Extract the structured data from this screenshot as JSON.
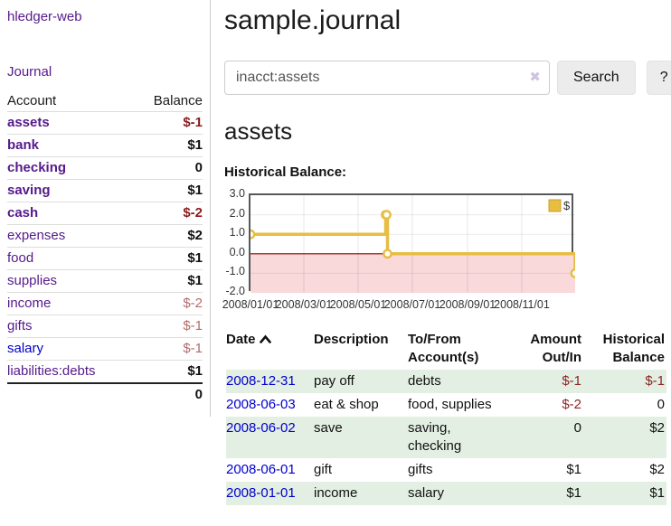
{
  "app": {
    "brand": "hledger-web",
    "nav_journal": "Journal"
  },
  "sidebar": {
    "accounts_header": {
      "account": "Account",
      "balance": "Balance"
    },
    "accounts": [
      {
        "name": "assets",
        "balance": "$-1",
        "depth": 0,
        "bold": true,
        "balance_style": "neg-strong"
      },
      {
        "name": "bank",
        "balance": "$1",
        "depth": 1,
        "bold": true,
        "balance_style": "pos"
      },
      {
        "name": "checking",
        "balance": "0",
        "depth": 2,
        "bold": true,
        "balance_style": "pos"
      },
      {
        "name": "saving",
        "balance": "$1",
        "depth": 2,
        "bold": true,
        "balance_style": "pos"
      },
      {
        "name": "cash",
        "balance": "$-2",
        "depth": 1,
        "bold": true,
        "balance_style": "neg-strong"
      },
      {
        "name": "expenses",
        "balance": "$2",
        "depth": 0,
        "bold": false,
        "balance_style": "pos"
      },
      {
        "name": "food",
        "balance": "$1",
        "depth": 1,
        "bold": false,
        "balance_style": "pos"
      },
      {
        "name": "supplies",
        "balance": "$1",
        "depth": 1,
        "bold": false,
        "balance_style": "pos"
      },
      {
        "name": "income",
        "balance": "$-2",
        "depth": 0,
        "bold": false,
        "balance_style": "neg-muted"
      },
      {
        "name": "gifts",
        "balance": "$-1",
        "depth": 1,
        "bold": false,
        "balance_style": "neg-muted"
      },
      {
        "name": "salary",
        "balance": "$-1",
        "depth": 1,
        "bold": false,
        "balance_style": "neg-muted",
        "link_color": "blue"
      },
      {
        "name": "liabilities:debts",
        "balance": "$1",
        "depth": 0,
        "bold": false,
        "balance_style": "pos"
      }
    ],
    "total": "0"
  },
  "header": {
    "title": "sample.journal"
  },
  "search": {
    "value": "inacct:assets",
    "clear_icon": "✖",
    "button_label": "Search",
    "help_label": "?"
  },
  "account_page": {
    "title": "assets",
    "chart_label": "Historical Balance:"
  },
  "chart_data": {
    "type": "line",
    "style": "step",
    "title": "Historical Balance",
    "series": [
      {
        "name": "$",
        "color": "#e7bd42",
        "points": [
          [
            "2008-01-01",
            1
          ],
          [
            "2008-06-01",
            2
          ],
          [
            "2008-06-02",
            2
          ],
          [
            "2008-06-03",
            0
          ],
          [
            "2008-12-31",
            -1
          ]
        ]
      }
    ],
    "ylim": [
      -2.0,
      3.0
    ],
    "yticks": [
      3.0,
      2.0,
      1.0,
      0.0,
      -1.0,
      -2.0
    ],
    "xticks": [
      "2008/01/01",
      "2008/03/01",
      "2008/05/01",
      "2008/07/01",
      "2008/09/01",
      "2008/11/01"
    ],
    "x_range": [
      "2008-01-01",
      "2008-12-31"
    ],
    "legend": "$",
    "legend_position": "top-right",
    "grid": true,
    "negative_region_shaded": true
  },
  "register": {
    "columns": [
      {
        "line1": "Date",
        "line2": "",
        "align": "left",
        "sorted": "asc"
      },
      {
        "line1": "Description",
        "line2": "",
        "align": "left"
      },
      {
        "line1": "To/From",
        "line2": "Account(s)",
        "align": "left"
      },
      {
        "line1": "Amount",
        "line2": "Out/In",
        "align": "right"
      },
      {
        "line1": "Historical",
        "line2": "Balance",
        "align": "right"
      }
    ],
    "rows": [
      {
        "date": "2008-12-31",
        "description": "pay off",
        "accounts": "debts",
        "amount": "$-1",
        "amount_neg": true,
        "balance": "$-1",
        "balance_neg": true
      },
      {
        "date": "2008-06-03",
        "description": "eat & shop",
        "accounts": "food, supplies",
        "amount": "$-2",
        "amount_neg": true,
        "balance": "0",
        "balance_neg": false
      },
      {
        "date": "2008-06-02",
        "description": "save",
        "accounts": "saving, checking",
        "amount": "0",
        "amount_neg": false,
        "balance": "$2",
        "balance_neg": false
      },
      {
        "date": "2008-06-01",
        "description": "gift",
        "accounts": "gifts",
        "amount": "$1",
        "amount_neg": false,
        "balance": "$2",
        "balance_neg": false
      },
      {
        "date": "2008-01-01",
        "description": "income",
        "accounts": "salary",
        "amount": "$1",
        "amount_neg": false,
        "balance": "$1",
        "balance_neg": false
      }
    ]
  },
  "colors": {
    "link_purple": "#551a8b",
    "link_blue": "#0000cc",
    "negative_strong": "#8b1b1b",
    "negative_muted": "#b36b6b",
    "register_negative": "#8b2525",
    "row_stripe_green": "#e3efe3",
    "chart_line_gold": "#e7bd42",
    "chart_negative_fill": "#f9d9da",
    "chart_zero_line": "#8b0000",
    "chart_border": "#55595c"
  }
}
